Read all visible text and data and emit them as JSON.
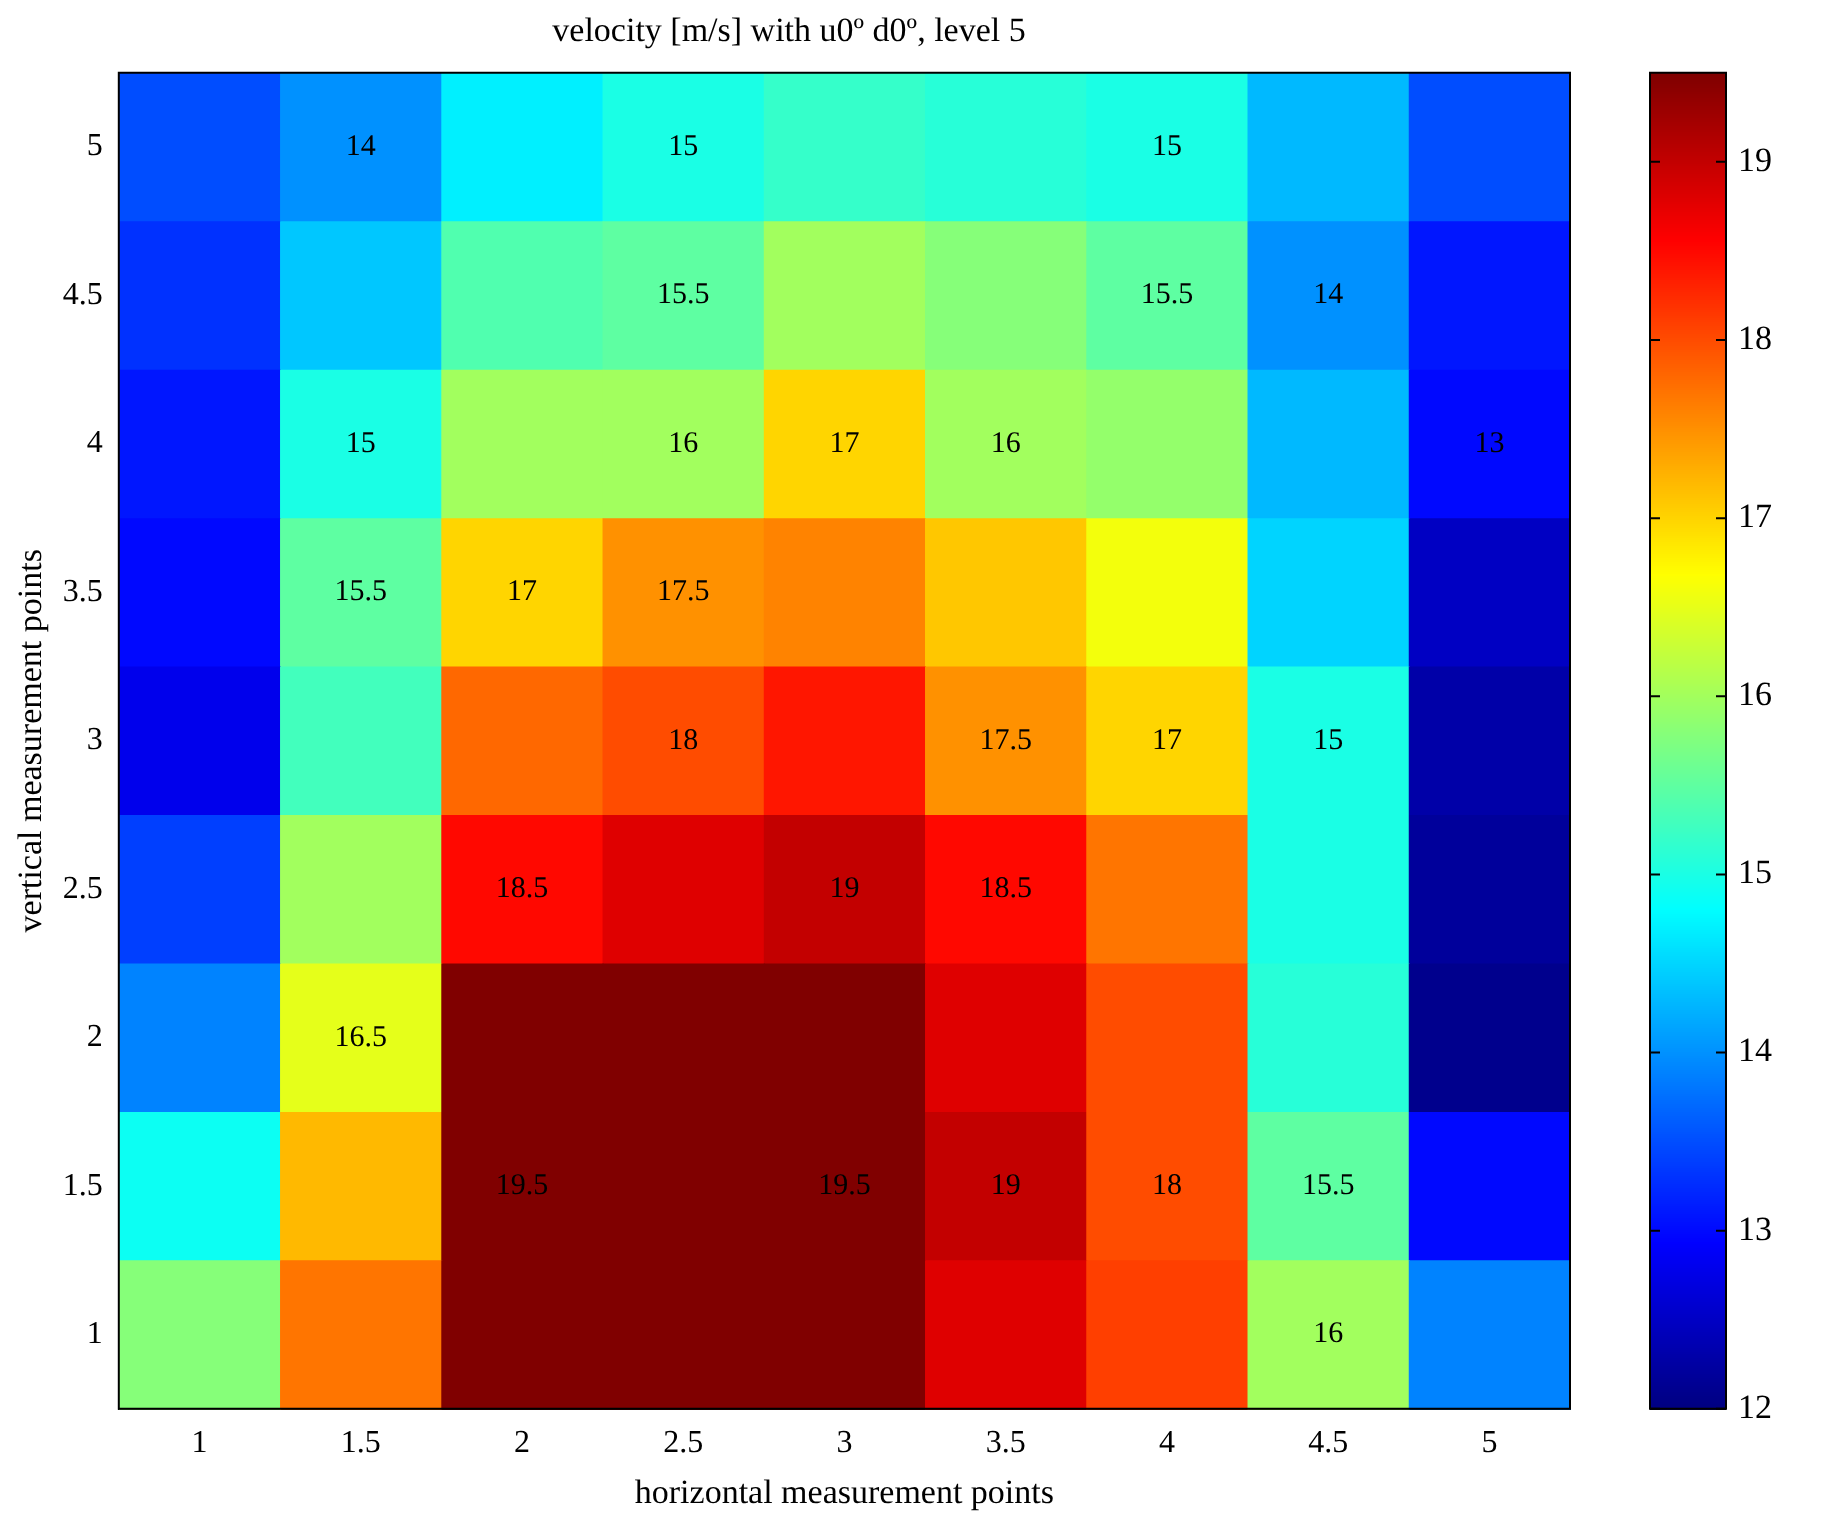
{
  "chart_data": {
    "type": "heatmap",
    "title": "velocity [m/s] with u0º d0º, level 5",
    "xlabel": "horizontal measurement points",
    "ylabel": "vertical measurement points",
    "categories": [
      "1",
      "1.5",
      "2",
      "2.5",
      "3",
      "3.5",
      "4",
      "4.5",
      "5"
    ],
    "y_categories": [
      "5",
      "4.5",
      "4",
      "3.5",
      "3",
      "2.5",
      "2",
      "1.5",
      "1"
    ],
    "cells": [
      [
        13.5,
        14.0,
        14.7,
        15.0,
        15.2,
        15.1,
        15.0,
        14.3,
        13.5
      ],
      [
        13.3,
        14.4,
        15.4,
        15.5,
        16.0,
        15.8,
        15.5,
        14.0,
        13.1
      ],
      [
        13.1,
        15.0,
        16.0,
        16.0,
        17.0,
        16.0,
        15.9,
        14.3,
        13.0
      ],
      [
        13.0,
        15.5,
        17.0,
        17.5,
        17.6,
        17.1,
        16.6,
        14.5,
        12.5
      ],
      [
        12.8,
        15.3,
        17.8,
        18.0,
        18.4,
        17.5,
        17.0,
        15.0,
        12.3
      ],
      [
        13.4,
        16.0,
        18.5,
        18.8,
        19.0,
        18.5,
        17.7,
        15.0,
        12.2
      ],
      [
        13.9,
        16.5,
        19.5,
        19.5,
        19.5,
        18.8,
        18.0,
        15.1,
        12.1
      ],
      [
        14.9,
        17.2,
        19.5,
        19.5,
        19.5,
        19.0,
        18.0,
        15.5,
        13.0
      ],
      [
        15.8,
        17.7,
        19.5,
        19.5,
        19.5,
        18.8,
        18.1,
        16.0,
        13.9
      ]
    ],
    "cell_labels": [
      [
        null,
        "14",
        null,
        "15",
        null,
        null,
        "15",
        null,
        null
      ],
      [
        null,
        null,
        null,
        "15.5",
        null,
        null,
        "15.5",
        "14",
        null
      ],
      [
        null,
        "15",
        null,
        "16",
        "17",
        "16",
        null,
        null,
        "13"
      ],
      [
        null,
        "15.5",
        "17",
        "17.5",
        null,
        null,
        null,
        null,
        null
      ],
      [
        null,
        null,
        null,
        "18",
        null,
        "17.5",
        "17",
        "15",
        null
      ],
      [
        null,
        null,
        "18.5",
        null,
        "19",
        "18.5",
        null,
        null,
        null
      ],
      [
        null,
        "16.5",
        null,
        null,
        null,
        null,
        null,
        null,
        null
      ],
      [
        null,
        null,
        "19.5",
        null,
        "19.5",
        "19",
        "18",
        "15.5",
        null
      ],
      [
        null,
        null,
        null,
        null,
        null,
        null,
        null,
        "16",
        null
      ]
    ],
    "clim": [
      12,
      19.5
    ],
    "cticks": [
      12,
      13,
      14,
      15,
      16,
      17,
      18,
      19
    ]
  }
}
